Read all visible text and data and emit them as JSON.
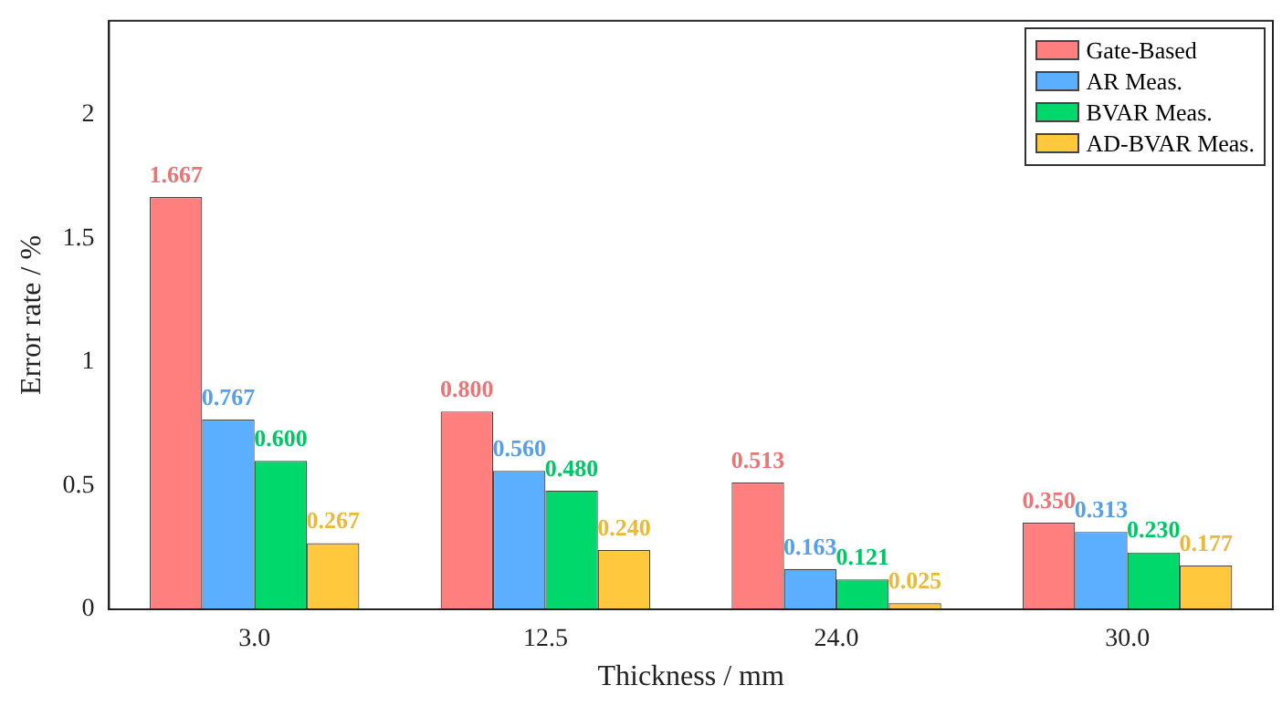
{
  "chart_data": {
    "type": "bar",
    "xlabel": "Thickness / mm",
    "ylabel": "Error rate / %",
    "categories": [
      "3.0",
      "12.5",
      "24.0",
      "30.0"
    ],
    "series": [
      {
        "name": "Gate-Based",
        "color": "#ff7f7f",
        "values": [
          1.667,
          0.8,
          0.513,
          0.35
        ],
        "value_labels": [
          "1.667",
          "0.800",
          "0.513",
          "0.350"
        ]
      },
      {
        "name": "AR Meas.",
        "color": "#5caeff",
        "values": [
          0.767,
          0.56,
          0.163,
          0.313
        ],
        "value_labels": [
          "0.767",
          "0.560",
          "0.163",
          "0.313"
        ]
      },
      {
        "name": "BVAR Meas.",
        "color": "#00d86c",
        "values": [
          0.6,
          0.48,
          0.121,
          0.23
        ],
        "value_labels": [
          "0.600",
          "0.480",
          "0.121",
          "0.230"
        ]
      },
      {
        "name": "AD-BVAR Meas.",
        "color": "#ffc83d",
        "values": [
          0.267,
          0.24,
          0.025,
          0.177
        ],
        "value_labels": [
          "0.267",
          "0.240",
          "0.025",
          "0.177"
        ]
      }
    ],
    "ylim": [
      0,
      2.38
    ],
    "yticks": [
      0,
      0.5,
      1,
      1.5,
      2
    ],
    "grid": false,
    "legend": "top right"
  }
}
